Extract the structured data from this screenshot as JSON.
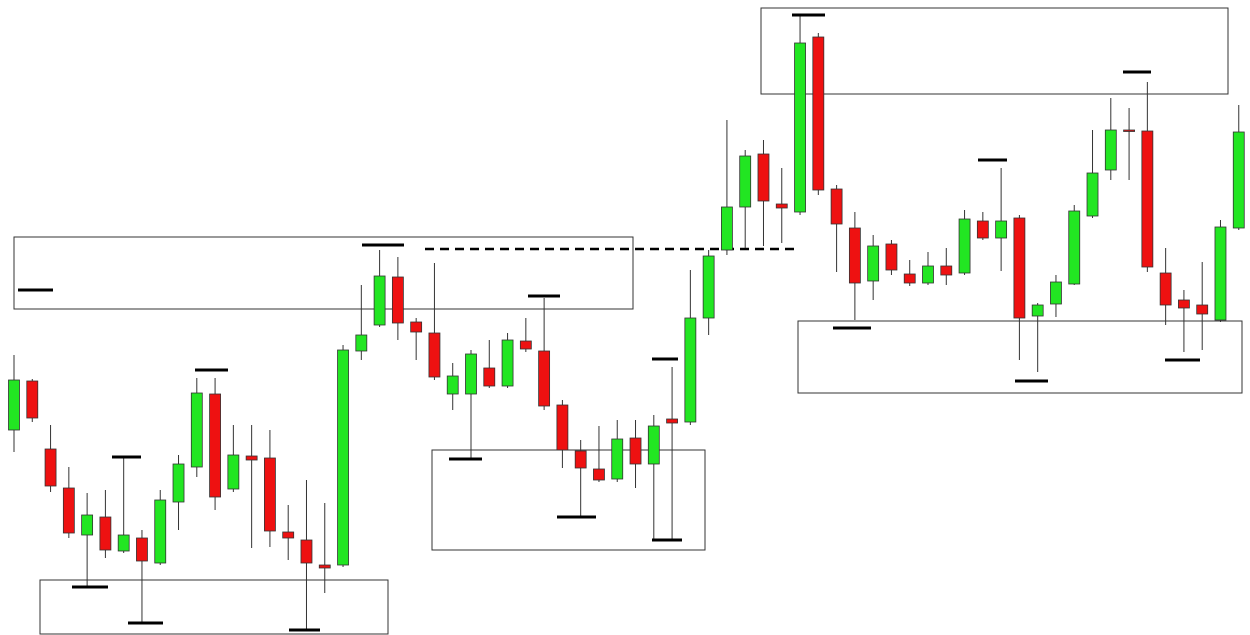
{
  "chart_data": {
    "type": "candlestick",
    "up_color": "#22e622",
    "down_color": "#ee1111",
    "ylim": [
      0,
      635
    ],
    "open": [
      205,
      254,
      186,
      147,
      100,
      118,
      84,
      97,
      72,
      133,
      168,
      241,
      146,
      179,
      177,
      103,
      95,
      70,
      70,
      284,
      310,
      358,
      313,
      302,
      241,
      241,
      267,
      249,
      294,
      284,
      230,
      184,
      166,
      156,
      197,
      171,
      216,
      213,
      317,
      385,
      428,
      481,
      431,
      423,
      598,
      446,
      407,
      354,
      391,
      361,
      352,
      369,
      362,
      414,
      397,
      417,
      319,
      331,
      351,
      419,
      465,
      505,
      504,
      362,
      335,
      330,
      315,
      407,
      498
    ],
    "high": [
      280,
      256,
      210,
      168,
      142,
      145,
      177,
      105,
      145,
      180,
      257,
      257,
      210,
      210,
      205,
      130,
      155,
      132,
      290,
      350,
      385,
      378,
      317,
      372,
      272,
      285,
      295,
      302,
      317,
      337,
      235,
      195,
      209,
      215,
      215,
      220,
      268,
      365,
      385,
      515,
      485,
      495,
      467,
      620,
      602,
      450,
      423,
      400,
      395,
      375,
      383,
      387,
      425,
      423,
      467,
      420,
      332,
      360,
      430,
      505,
      537,
      527,
      553,
      387,
      345,
      373,
      415,
      530,
      527
    ],
    "low": [
      183,
      213,
      143,
      97,
      48,
      77,
      82,
      13,
      70,
      105,
      158,
      125,
      143,
      87,
      88,
      75,
      5,
      42,
      68,
      275,
      308,
      295,
      275,
      255,
      225,
      177,
      247,
      247,
      283,
      225,
      167,
      118,
      153,
      153,
      147,
      95,
      95,
      210,
      300,
      380,
      387,
      389,
      392,
      420,
      440,
      363,
      315,
      335,
      360,
      349,
      350,
      350,
      360,
      395,
      364,
      275,
      263,
      318,
      350,
      417,
      455,
      455,
      363,
      310,
      283,
      285,
      313,
      405,
      415
    ],
    "close": [
      255,
      217,
      149,
      102,
      120,
      85,
      100,
      74,
      135,
      171,
      242,
      138,
      180,
      175,
      104,
      97,
      72,
      67,
      285,
      300,
      359,
      312,
      303,
      258,
      259,
      281,
      249,
      295,
      286,
      229,
      185,
      167,
      155,
      196,
      171,
      209,
      212,
      317,
      379,
      428,
      479,
      434,
      427,
      592,
      445,
      411,
      352,
      389,
      365,
      352,
      369,
      360,
      416,
      397,
      414,
      317,
      330,
      353,
      424,
      462,
      505,
      504,
      368,
      330,
      327,
      321,
      408,
      503,
      418
    ]
  }
}
